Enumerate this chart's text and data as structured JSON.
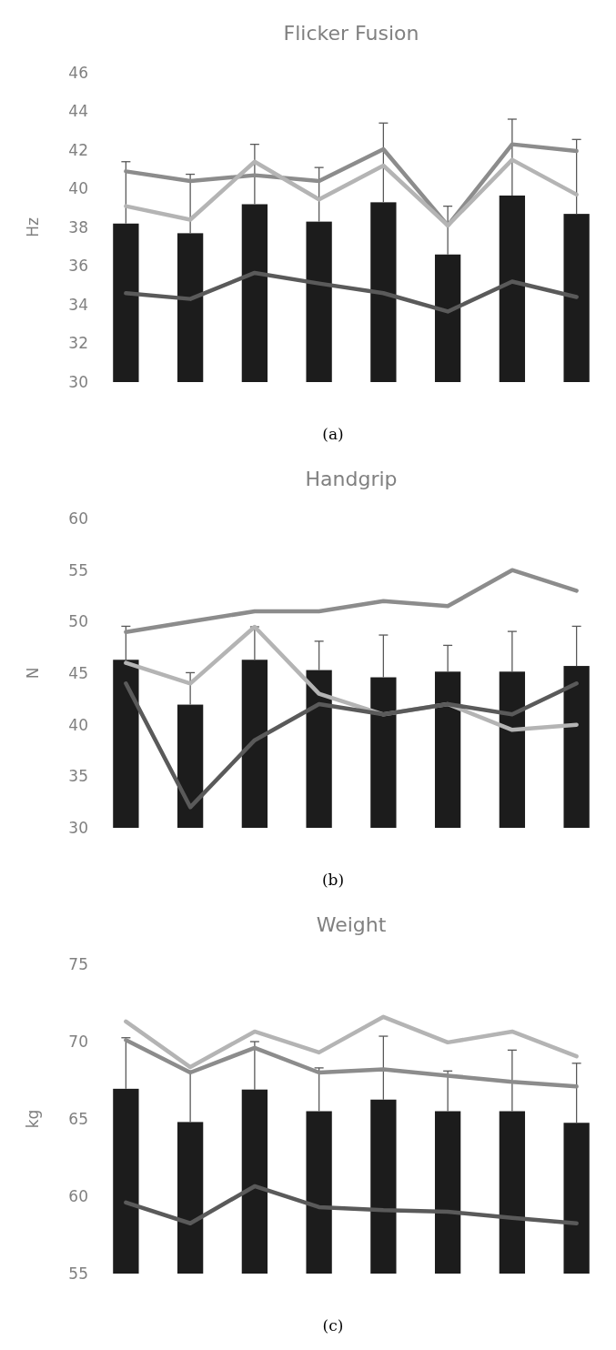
{
  "chart_data": [
    {
      "type": "bar",
      "title": "Flicker Fusion",
      "ylabel": "Hz",
      "annotations": [
        "(a)"
      ],
      "categories": [
        null,
        null,
        null,
        null,
        null,
        null,
        null,
        null
      ],
      "ylim": [
        30,
        46
      ],
      "yticks": [
        30,
        32,
        34,
        36,
        38,
        40,
        42,
        44,
        46
      ],
      "color": "#1c1c1c",
      "values": [
        38.2,
        37.7,
        39.2,
        38.3,
        39.3,
        36.6,
        39.65,
        38.7
      ],
      "errors": [
        [
          38.2,
          41.4
        ],
        [
          37.7,
          40.75
        ],
        [
          39.2,
          42.3
        ],
        [
          38.3,
          41.1
        ],
        [
          39.3,
          43.4
        ],
        [
          36.6,
          39.1
        ],
        [
          39.65,
          43.6
        ],
        [
          38.7,
          42.55
        ]
      ]
    },
    {
      "type": "line",
      "categories": [
        null,
        null,
        null,
        null,
        null,
        null,
        null,
        null
      ],
      "ylim": [
        30,
        46
      ],
      "tick_labels": false,
      "series": [
        {
          "color": "#8c8c8c",
          "values": [
            40.9,
            40.4,
            40.7,
            40.4,
            42.05,
            38.1,
            42.3,
            41.95
          ]
        },
        {
          "color": "#b4b4b4",
          "values": [
            39.1,
            38.4,
            41.4,
            39.45,
            41.2,
            38.1,
            41.5,
            39.7
          ]
        },
        {
          "color": "#5a5a5a",
          "values": [
            34.6,
            34.3,
            35.65,
            35.1,
            34.6,
            33.65,
            35.2,
            34.4
          ]
        }
      ]
    },
    {
      "type": "bar",
      "title": "Handgrip",
      "ylabel": "N",
      "annotations": [
        "(b)"
      ],
      "categories": [
        null,
        null,
        null,
        null,
        null,
        null,
        null,
        null
      ],
      "ylim": [
        30,
        60
      ],
      "yticks": [
        30,
        35,
        40,
        45,
        50,
        55,
        60
      ],
      "color": "#1c1c1c",
      "values": [
        46.3,
        41.95,
        46.3,
        45.3,
        44.6,
        45.15,
        45.15,
        45.7
      ],
      "errors": [
        [
          46.3,
          49.55
        ],
        [
          41.95,
          45.05
        ],
        [
          46.3,
          49.5
        ],
        [
          45.3,
          48.1
        ],
        [
          44.6,
          48.7
        ],
        [
          45.15,
          47.7
        ],
        [
          45.15,
          49.05
        ],
        [
          45.7,
          49.55
        ]
      ]
    },
    {
      "type": "line",
      "categories": [
        null,
        null,
        null,
        null,
        null,
        null,
        null,
        null
      ],
      "ylim": [
        30,
        60
      ],
      "tick_labels": false,
      "series": [
        {
          "color": "#8c8c8c",
          "values": [
            49,
            50,
            51,
            51,
            52,
            51.5,
            55,
            53
          ]
        },
        {
          "color": "#b4b4b4",
          "values": [
            46,
            44,
            49.5,
            43,
            41,
            42,
            39.5,
            40
          ]
        },
        {
          "color": "#5a5a5a",
          "values": [
            44,
            32,
            38.5,
            42,
            41,
            42,
            41,
            44
          ]
        }
      ]
    },
    {
      "type": "bar",
      "title": "Weight",
      "ylabel": "kg",
      "annotations": [
        "(c)"
      ],
      "categories": [
        null,
        null,
        null,
        null,
        null,
        null,
        null,
        null
      ],
      "ylim": [
        55,
        75
      ],
      "yticks": [
        55,
        60,
        65,
        70,
        75
      ],
      "color": "#1c1c1c",
      "values": [
        66.95,
        64.8,
        66.9,
        65.5,
        66.25,
        65.5,
        65.5,
        64.75
      ],
      "errors": [
        [
          66.95,
          70.25
        ],
        [
          64.8,
          68.1
        ],
        [
          66.9,
          70.0
        ],
        [
          65.5,
          68.3
        ],
        [
          66.25,
          70.35
        ],
        [
          65.5,
          68.1
        ],
        [
          65.5,
          69.45
        ],
        [
          64.75,
          68.6
        ]
      ]
    },
    {
      "type": "line",
      "categories": [
        null,
        null,
        null,
        null,
        null,
        null,
        null,
        null
      ],
      "ylim": [
        55,
        75
      ],
      "tick_labels": false,
      "series": [
        {
          "color": "#8c8c8c",
          "values": [
            70.1,
            68.0,
            69.6,
            68.0,
            68.2,
            67.8,
            67.4,
            67.1
          ]
        },
        {
          "color": "#b4b4b4",
          "values": [
            71.3,
            68.35,
            70.65,
            69.3,
            71.6,
            69.95,
            70.65,
            69.05
          ]
        },
        {
          "color": "#5a5a5a",
          "values": [
            59.6,
            58.25,
            60.65,
            59.3,
            59.1,
            59.0,
            58.6,
            58.25
          ]
        }
      ]
    }
  ]
}
